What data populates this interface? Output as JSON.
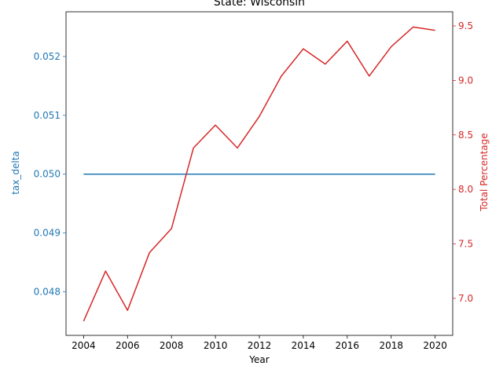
{
  "chart_data": {
    "type": "line",
    "title": "State: Wisconsin",
    "xlabel": "Year",
    "ylabel_left": "tax_delta",
    "ylabel_right": "Total Percentage",
    "colors": {
      "left": "#1f77b4",
      "right": "#d62728",
      "axis": "#000000"
    },
    "x": [
      2004,
      2005,
      2006,
      2007,
      2008,
      2009,
      2010,
      2011,
      2012,
      2013,
      2014,
      2015,
      2016,
      2017,
      2018,
      2019,
      2020
    ],
    "x_ticks": [
      2004,
      2006,
      2008,
      2010,
      2012,
      2014,
      2016,
      2018,
      2020
    ],
    "xlim": [
      2003.2,
      2020.8
    ],
    "y_left": {
      "ticks": [
        "0.048",
        "0.049",
        "0.050",
        "0.051",
        "0.052"
      ],
      "tick_values": [
        0.048,
        0.049,
        0.05,
        0.051,
        0.052
      ],
      "lim": [
        0.04726,
        0.05276
      ]
    },
    "y_right": {
      "ticks": [
        "7.0",
        "7.5",
        "8.0",
        "8.5",
        "9.0",
        "9.5"
      ],
      "tick_values": [
        7.0,
        7.5,
        8.0,
        8.5,
        9.0,
        9.5
      ],
      "lim": [
        6.66,
        9.63
      ]
    },
    "series": [
      {
        "axis": "left",
        "color": "#1f77b4",
        "values": [
          0.05,
          0.05,
          0.05,
          0.05,
          0.05,
          0.05,
          0.05,
          0.05,
          0.05,
          0.05,
          0.05,
          0.05,
          0.05,
          0.05,
          0.05,
          0.05,
          0.05
        ]
      },
      {
        "axis": "right",
        "color": "#d62728",
        "values": [
          6.79,
          7.25,
          6.89,
          7.42,
          7.64,
          8.38,
          8.59,
          8.38,
          8.67,
          9.04,
          9.29,
          9.15,
          9.36,
          9.04,
          9.31,
          9.49,
          9.46
        ]
      }
    ]
  }
}
